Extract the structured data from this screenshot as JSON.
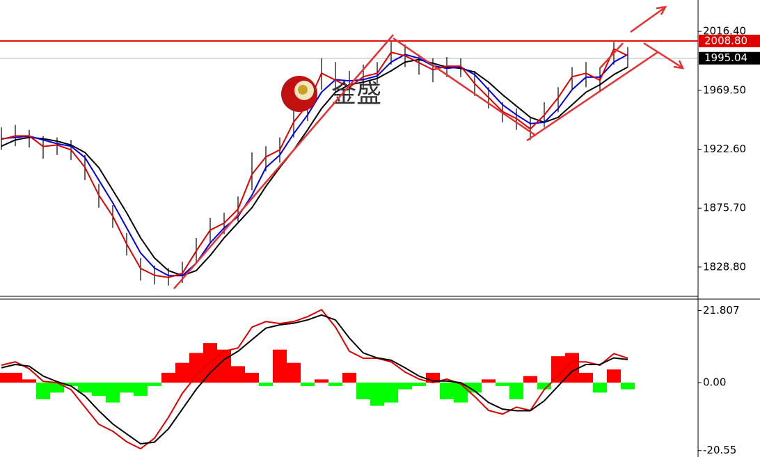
{
  "chart_data": [
    {
      "type": "line",
      "watermark": "金盛",
      "ylim": [
        1805.5,
        2041.4
      ],
      "yticks": [
        {
          "value": 2016.4,
          "label": "2016.40"
        },
        {
          "value": 1969.5,
          "label": "1969.50"
        },
        {
          "value": 1922.6,
          "label": "1922.60"
        },
        {
          "value": 1875.7,
          "label": "1875.70"
        },
        {
          "value": 1828.8,
          "label": "1828.80"
        }
      ],
      "levels": [
        {
          "value": 2008.8,
          "label": "2008.80",
          "color": "#e00000"
        },
        {
          "value": 1995.04,
          "label": "1995.04",
          "color": "#000000"
        }
      ],
      "bars": {
        "color": "#000000",
        "high": [
          1940,
          1942,
          1938,
          1933,
          1932,
          1930,
          1918,
          1895,
          1878,
          1856,
          1836,
          1830,
          1828,
          1833,
          1852,
          1868,
          1872,
          1885,
          1920,
          1925,
          1932,
          1955,
          1975,
          1995,
          1992,
          1985,
          1990,
          1992,
          2008,
          2006,
          1998,
          1995,
          1996,
          1995,
          1985,
          1972,
          1960,
          1955,
          1948,
          1960,
          1972,
          1988,
          1992,
          1988,
          2008,
          2004
        ],
        "low": [
          1922,
          1925,
          1924,
          1915,
          1918,
          1914,
          1898,
          1876,
          1860,
          1838,
          1818,
          1815,
          1814,
          1816,
          1832,
          1848,
          1855,
          1865,
          1890,
          1905,
          1912,
          1932,
          1945,
          1970,
          1968,
          1962,
          1970,
          1975,
          1990,
          1988,
          1982,
          1976,
          1980,
          1980,
          1965,
          1955,
          1944,
          1938,
          1930,
          1940,
          1952,
          1970,
          1972,
          1968,
          1990,
          1988
        ]
      },
      "series": [
        {
          "color": "#000000",
          "values": [
            1925,
            1930,
            1932,
            1931,
            1929,
            1926,
            1920,
            1908,
            1890,
            1872,
            1852,
            1836,
            1826,
            1822,
            1826,
            1838,
            1852,
            1864,
            1876,
            1893,
            1908,
            1922,
            1938,
            1955,
            1968,
            1974,
            1976,
            1979,
            1985,
            1992,
            1994,
            1991,
            1988,
            1987,
            1984,
            1976,
            1966,
            1957,
            1948,
            1944,
            1948,
            1958,
            1968,
            1974,
            1982,
            1988
          ]
        },
        {
          "color": "#0000e0",
          "values": [
            1931,
            1932,
            1933,
            1930,
            1927,
            1925,
            1916,
            1898,
            1880,
            1860,
            1840,
            1828,
            1822,
            1822,
            1832,
            1848,
            1860,
            1869,
            1886,
            1908,
            1918,
            1935,
            1950,
            1968,
            1978,
            1977,
            1978,
            1981,
            1992,
            1998,
            1995,
            1989,
            1987,
            1988,
            1982,
            1970,
            1958,
            1950,
            1943,
            1944,
            1955,
            1970,
            1980,
            1980,
            1992,
            1998
          ]
        },
        {
          "color": "#e00000",
          "values": [
            1930.4,
            1933.2,
            1933.2,
            1924.8,
            1926.0,
            1922.1,
            1908.2,
            1886.0,
            1869.3,
            1847.1,
            1827.7,
            1822.2,
            1820.5,
            1823.8,
            1841.6,
            1858.2,
            1863.8,
            1874.9,
            1902.6,
            1916.5,
            1922.1,
            1944.3,
            1958.1,
            1983.1,
            1977.6,
            1972.0,
            1980.3,
            1983.1,
            1999.8,
            1997.0,
            1991.4,
            1985.9,
            1988.7,
            1988.7,
            1974.8,
            1963.7,
            1952.6,
            1947.0,
            1938.7,
            1949.8,
            1963.7,
            1980.3,
            1983.1,
            1977.6,
            2002.5,
            1997.0
          ]
        }
      ]
    },
    {
      "type": "macd",
      "ylim": [
        -22.5,
        25.3
      ],
      "yticks": [
        21.807,
        {
          "value": 0,
          "label": "0.00"
        },
        -20.55
      ],
      "histogram": {
        "up_color": "#ff0000",
        "down_color": "#00ff00",
        "values": [
          3,
          3,
          1,
          -5,
          -3,
          -1,
          -3,
          -4,
          -6,
          -3,
          -4,
          -1,
          3,
          6,
          9,
          12,
          10,
          5,
          3,
          -1,
          10,
          6,
          -1,
          1,
          -1,
          3,
          -5,
          -7,
          -6,
          -2,
          -1,
          3,
          -5,
          -6,
          -3,
          1,
          -1,
          -5,
          2,
          -2,
          8,
          9,
          3,
          -3,
          4,
          -2
        ]
      },
      "series": [
        {
          "color": "#e00000",
          "values": [
            5.3,
            6.3,
            4.2,
            0.4,
            0,
            -2.1,
            -7.4,
            -12.6,
            -14.7,
            -17.9,
            -20.0,
            -16.8,
            -10.5,
            -3.2,
            2.1,
            6.3,
            9.5,
            10.5,
            16.8,
            18.5,
            17.9,
            18.5,
            20.0,
            22.1,
            16.8,
            9.5,
            7.4,
            7.4,
            6.3,
            3.2,
            1.1,
            0,
            1.1,
            -0.4,
            -4.2,
            -8.4,
            -9.5,
            -7.4,
            -8.4,
            -2.1,
            2.1,
            6.3,
            6.3,
            5.3,
            8.8,
            7.4
          ]
        },
        {
          "color": "#000000",
          "values": [
            4.5,
            5.5,
            5.0,
            2.0,
            0.3,
            -1.0,
            -4.0,
            -8.5,
            -12.5,
            -15.5,
            -18.5,
            -18.0,
            -14.0,
            -8.0,
            -2.0,
            3.0,
            7.0,
            9.5,
            13.0,
            16.5,
            17.5,
            18.0,
            19.0,
            20.5,
            19.0,
            13.5,
            9.0,
            7.5,
            6.8,
            4.5,
            2.0,
            0.5,
            0.5,
            0.0,
            -2.5,
            -6.0,
            -8.0,
            -8.5,
            -8.5,
            -5.5,
            -1.0,
            3.5,
            5.5,
            5.5,
            7.5,
            7.0
          ]
        }
      ]
    }
  ]
}
